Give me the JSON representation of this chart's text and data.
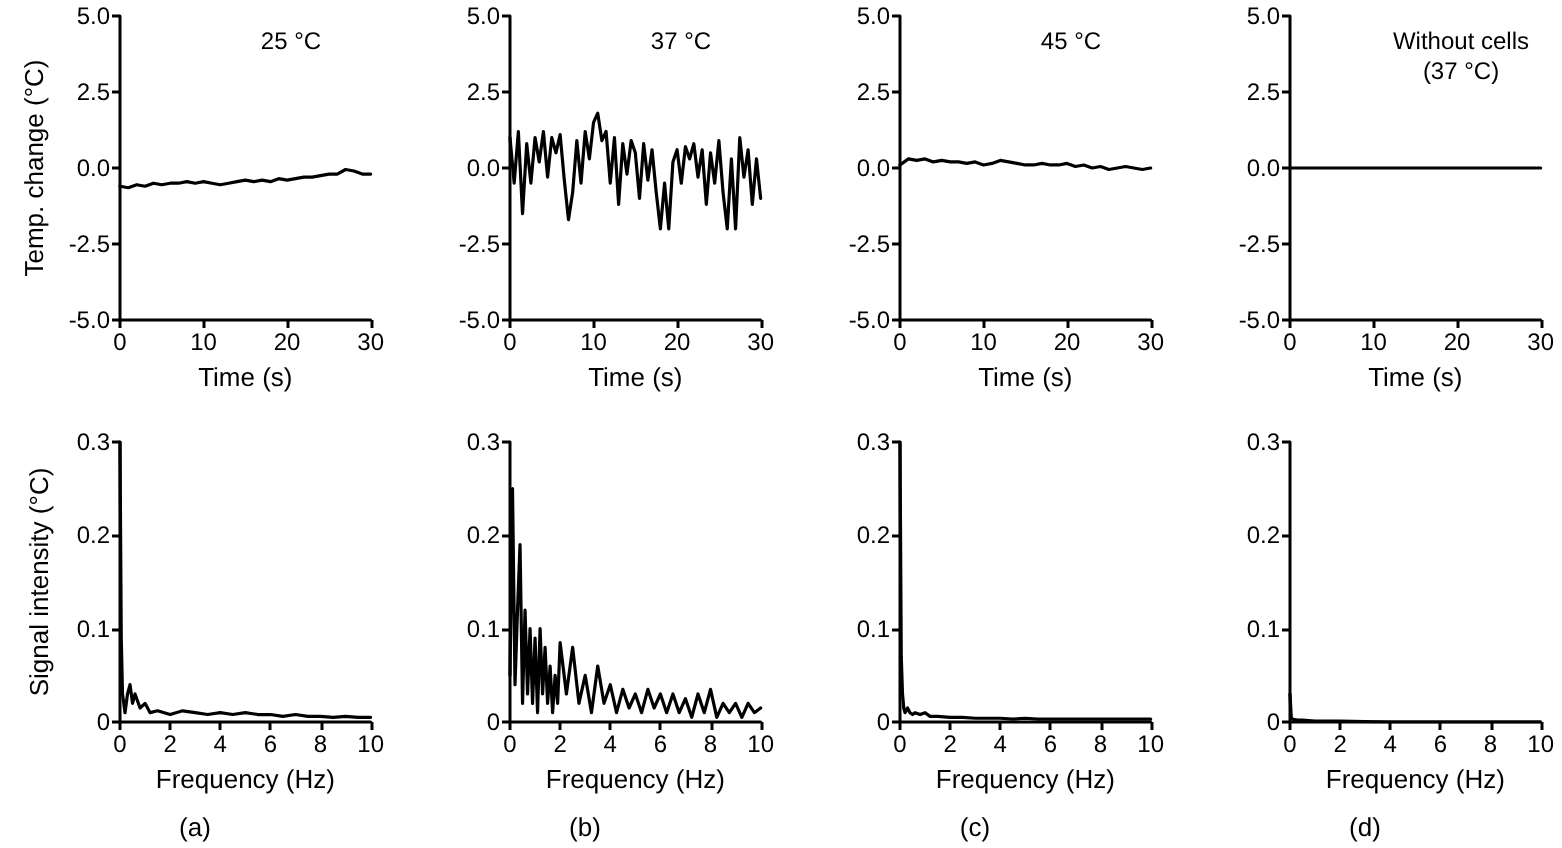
{
  "chart_data": [
    {
      "type": "line",
      "title": "25 °C",
      "ylabel": "Temp. change (°C)",
      "xlabel": "Time (s)",
      "color": "#000000",
      "marker": "none",
      "line_style": "solid",
      "grid": false,
      "x": [
        0,
        1,
        2,
        3,
        4,
        5,
        6,
        7,
        8,
        9,
        10,
        11,
        12,
        13,
        14,
        15,
        16,
        17,
        18,
        19,
        20,
        21,
        22,
        23,
        24,
        25,
        26,
        27,
        28,
        29,
        30
      ],
      "values": [
        -0.6,
        -0.65,
        -0.55,
        -0.6,
        -0.5,
        -0.55,
        -0.5,
        -0.5,
        -0.45,
        -0.5,
        -0.45,
        -0.5,
        -0.55,
        -0.5,
        -0.45,
        -0.4,
        -0.45,
        -0.4,
        -0.45,
        -0.35,
        -0.4,
        -0.35,
        -0.3,
        -0.3,
        -0.25,
        -0.2,
        -0.2,
        -0.05,
        -0.1,
        -0.2,
        -0.2
      ],
      "xlim": [
        0,
        30
      ],
      "xticks": [
        0,
        10,
        20,
        30
      ],
      "ylim": [
        -5,
        5
      ],
      "yticks": [
        {
          "value": -5,
          "label": "-5.0"
        },
        {
          "value": -2.5,
          "label": "-2.5"
        },
        {
          "value": 0,
          "label": "0.0"
        },
        {
          "value": 2.5,
          "label": "2.5"
        },
        {
          "value": 5,
          "label": "5.0"
        }
      ]
    },
    {
      "type": "line",
      "title": "37 °C",
      "xlabel": "Time (s)",
      "color": "#000000",
      "marker": "none",
      "line_style": "solid",
      "grid": false,
      "x": [
        0,
        0.5,
        1,
        1.5,
        2,
        2.5,
        3,
        3.5,
        4,
        4.5,
        5,
        5.5,
        6,
        6.5,
        7,
        7.5,
        8,
        8.5,
        9,
        9.5,
        10,
        10.5,
        11,
        11.5,
        12,
        12.5,
        13,
        13.5,
        14,
        14.5,
        15,
        15.5,
        16,
        16.5,
        17,
        17.5,
        18,
        18.5,
        19,
        19.5,
        20,
        20.5,
        21,
        21.5,
        22,
        22.5,
        23,
        23.5,
        24,
        24.5,
        25,
        25.5,
        26,
        26.5,
        27,
        27.5,
        28,
        28.5,
        29,
        29.5,
        30
      ],
      "values": [
        1.0,
        -0.5,
        1.2,
        -1.5,
        0.8,
        -0.5,
        1.0,
        0.2,
        1.2,
        -0.3,
        1.0,
        0.5,
        1.1,
        -0.4,
        -1.7,
        -0.8,
        0.9,
        -0.5,
        1.2,
        0.3,
        1.5,
        1.8,
        0.9,
        1.2,
        -0.5,
        1.0,
        -1.2,
        0.8,
        -0.2,
        0.9,
        0.5,
        -1.0,
        0.8,
        -0.4,
        0.6,
        -0.8,
        -2.0,
        -0.5,
        -2.0,
        0.2,
        0.6,
        -0.5,
        0.7,
        0.3,
        0.8,
        -0.3,
        0.6,
        -1.2,
        0.5,
        -0.5,
        0.9,
        -0.8,
        -2.0,
        0.3,
        -2.0,
        1.0,
        -0.3,
        0.6,
        -1.2,
        0.3,
        -1.0
      ],
      "xlim": [
        0,
        30
      ],
      "xticks": [
        0,
        10,
        20,
        30
      ],
      "ylim": [
        -5,
        5
      ],
      "yticks": [
        {
          "value": -5,
          "label": "-5.0"
        },
        {
          "value": -2.5,
          "label": "-2.5"
        },
        {
          "value": 0,
          "label": "0.0"
        },
        {
          "value": 2.5,
          "label": "2.5"
        },
        {
          "value": 5,
          "label": "5.0"
        }
      ]
    },
    {
      "type": "line",
      "title": "45 °C",
      "xlabel": "Time (s)",
      "color": "#000000",
      "marker": "none",
      "line_style": "solid",
      "grid": false,
      "x": [
        0,
        1,
        2,
        3,
        4,
        5,
        6,
        7,
        8,
        9,
        10,
        11,
        12,
        13,
        14,
        15,
        16,
        17,
        18,
        19,
        20,
        21,
        22,
        23,
        24,
        25,
        26,
        27,
        28,
        29,
        30
      ],
      "values": [
        0.1,
        0.3,
        0.25,
        0.3,
        0.2,
        0.25,
        0.2,
        0.2,
        0.15,
        0.2,
        0.1,
        0.15,
        0.25,
        0.2,
        0.15,
        0.1,
        0.1,
        0.15,
        0.1,
        0.1,
        0.15,
        0.05,
        0.1,
        0.0,
        0.05,
        -0.05,
        0.0,
        0.05,
        0.0,
        -0.05,
        0.0
      ],
      "xlim": [
        0,
        30
      ],
      "xticks": [
        0,
        10,
        20,
        30
      ],
      "ylim": [
        -5,
        5
      ],
      "yticks": [
        {
          "value": -5,
          "label": "-5.0"
        },
        {
          "value": -2.5,
          "label": "-2.5"
        },
        {
          "value": 0,
          "label": "0.0"
        },
        {
          "value": 2.5,
          "label": "2.5"
        },
        {
          "value": 5,
          "label": "5.0"
        }
      ]
    },
    {
      "type": "line",
      "title": "Without cells\n(37 °C)",
      "xlabel": "Time (s)",
      "color": "#000000",
      "marker": "none",
      "line_style": "solid",
      "grid": false,
      "x": [
        0,
        5,
        10,
        15,
        20,
        25,
        30
      ],
      "values": [
        0,
        0,
        0,
        0,
        0,
        0,
        0
      ],
      "xlim": [
        0,
        30
      ],
      "xticks": [
        0,
        10,
        20,
        30
      ],
      "ylim": [
        -5,
        5
      ],
      "yticks": [
        {
          "value": -5,
          "label": "-5.0"
        },
        {
          "value": -2.5,
          "label": "-2.5"
        },
        {
          "value": 0,
          "label": "0.0"
        },
        {
          "value": 2.5,
          "label": "2.5"
        },
        {
          "value": 5,
          "label": "5.0"
        }
      ]
    },
    {
      "type": "line",
      "ylabel": "Signal intensity (°C)",
      "xlabel": "Frequency (Hz)",
      "annotations": [
        "(a)"
      ],
      "color": "#000000",
      "marker": "none",
      "line_style": "solid",
      "grid": false,
      "x": [
        0,
        0.05,
        0.1,
        0.15,
        0.2,
        0.3,
        0.4,
        0.5,
        0.6,
        0.8,
        1,
        1.2,
        1.5,
        2,
        2.5,
        3,
        3.5,
        4,
        4.5,
        5,
        5.5,
        6,
        6.5,
        7,
        7.5,
        8,
        8.5,
        9,
        9.5,
        10
      ],
      "values": [
        0.3,
        0.09,
        0.03,
        0.02,
        0.01,
        0.03,
        0.04,
        0.02,
        0.03,
        0.015,
        0.02,
        0.01,
        0.012,
        0.008,
        0.012,
        0.01,
        0.008,
        0.01,
        0.008,
        0.01,
        0.008,
        0.008,
        0.006,
        0.008,
        0.006,
        0.006,
        0.005,
        0.006,
        0.005,
        0.005
      ],
      "xlim": [
        0,
        10
      ],
      "xticks": [
        0,
        2,
        4,
        6,
        8,
        10
      ],
      "ylim": [
        0,
        0.3
      ],
      "yticks": [
        0,
        0.1,
        0.2,
        0.3
      ]
    },
    {
      "type": "line",
      "xlabel": "Frequency (Hz)",
      "annotations": [
        "(b)"
      ],
      "color": "#000000",
      "marker": "none",
      "line_style": "solid",
      "grid": false,
      "x": [
        0,
        0.1,
        0.2,
        0.3,
        0.4,
        0.5,
        0.6,
        0.7,
        0.8,
        0.9,
        1.0,
        1.1,
        1.2,
        1.3,
        1.4,
        1.5,
        1.6,
        1.7,
        1.8,
        1.9,
        2.0,
        2.25,
        2.5,
        2.75,
        3,
        3.25,
        3.5,
        3.75,
        4,
        4.25,
        4.5,
        4.75,
        5,
        5.25,
        5.5,
        5.75,
        6,
        6.25,
        6.5,
        6.75,
        7,
        7.25,
        7.5,
        7.75,
        8,
        8.25,
        8.5,
        8.75,
        9,
        9.25,
        9.5,
        9.75,
        10
      ],
      "values": [
        0.05,
        0.25,
        0.04,
        0.12,
        0.19,
        0.02,
        0.12,
        0.03,
        0.1,
        0.02,
        0.09,
        0.01,
        0.1,
        0.03,
        0.08,
        0.02,
        0.06,
        0.01,
        0.05,
        0.02,
        0.085,
        0.03,
        0.08,
        0.02,
        0.05,
        0.01,
        0.06,
        0.02,
        0.04,
        0.01,
        0.035,
        0.015,
        0.03,
        0.01,
        0.035,
        0.015,
        0.03,
        0.01,
        0.03,
        0.01,
        0.025,
        0.005,
        0.03,
        0.01,
        0.035,
        0.005,
        0.02,
        0.01,
        0.02,
        0.005,
        0.02,
        0.01,
        0.015
      ],
      "xlim": [
        0,
        10
      ],
      "xticks": [
        0,
        2,
        4,
        6,
        8,
        10
      ],
      "ylim": [
        0,
        0.3
      ],
      "yticks": [
        0,
        0.1,
        0.2,
        0.3
      ]
    },
    {
      "type": "line",
      "xlabel": "Frequency (Hz)",
      "annotations": [
        "(c)"
      ],
      "color": "#000000",
      "marker": "none",
      "line_style": "solid",
      "grid": false,
      "x": [
        0,
        0.05,
        0.1,
        0.15,
        0.2,
        0.3,
        0.4,
        0.5,
        0.6,
        0.8,
        1,
        1.2,
        1.5,
        2,
        2.5,
        3,
        3.5,
        4,
        4.5,
        5,
        5.5,
        6,
        6.5,
        7,
        7.5,
        8,
        8.5,
        9,
        9.5,
        10
      ],
      "values": [
        0.3,
        0.07,
        0.03,
        0.015,
        0.01,
        0.015,
        0.01,
        0.008,
        0.01,
        0.008,
        0.01,
        0.006,
        0.006,
        0.005,
        0.005,
        0.004,
        0.004,
        0.004,
        0.003,
        0.004,
        0.003,
        0.003,
        0.003,
        0.003,
        0.003,
        0.003,
        0.003,
        0.003,
        0.003,
        0.003
      ],
      "xlim": [
        0,
        10
      ],
      "xticks": [
        0,
        2,
        4,
        6,
        8,
        10
      ],
      "ylim": [
        0,
        0.3
      ],
      "yticks": [
        0,
        0.1,
        0.2,
        0.3
      ]
    },
    {
      "type": "line",
      "xlabel": "Frequency (Hz)",
      "annotations": [
        "(d)"
      ],
      "color": "#000000",
      "marker": "none",
      "line_style": "solid",
      "grid": false,
      "x": [
        0,
        0.05,
        0.1,
        0.3,
        0.5,
        1,
        2,
        4,
        6,
        8,
        10
      ],
      "values": [
        0.03,
        0.005,
        0.003,
        0.002,
        0.002,
        0.001,
        0.001,
        0,
        0,
        0,
        0
      ],
      "xlim": [
        0,
        10
      ],
      "xticks": [
        0,
        2,
        4,
        6,
        8,
        10
      ],
      "ylim": [
        0,
        0.3
      ],
      "yticks": [
        0,
        0.1,
        0.2,
        0.3
      ]
    }
  ]
}
